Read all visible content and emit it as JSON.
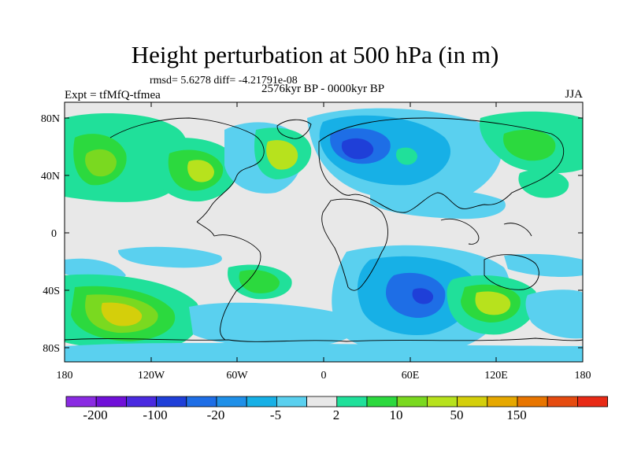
{
  "title": "Height perturbation at 500 hPa (in m)",
  "stats": "rmsd= 5.6278 diff= -4.21791e-08",
  "experiment": "Expt = tfMfQ-tfmea",
  "period": "2576kyr BP - 0000kyr BP",
  "season": "JJA",
  "lat_ticks": [
    "80N",
    "40N",
    "0",
    "40S",
    "80S"
  ],
  "lon_ticks": [
    "180",
    "120W",
    "60W",
    "0",
    "60E",
    "120E",
    "180"
  ],
  "colorbar": {
    "colors": [
      "#8a2be2",
      "#7010d8",
      "#4a2ae0",
      "#1f3fd8",
      "#1e6ee6",
      "#1f90e8",
      "#17b0e6",
      "#5ad0ef",
      "#e8e8e8",
      "#20e09a",
      "#2cd93e",
      "#7ad920",
      "#b7e21d",
      "#d4cf0b",
      "#e6a800",
      "#e87500",
      "#e54b10",
      "#e82a16"
    ],
    "labels": [
      "-200",
      "-100",
      "-20",
      "-5",
      "2",
      "10",
      "50",
      "150"
    ]
  }
}
